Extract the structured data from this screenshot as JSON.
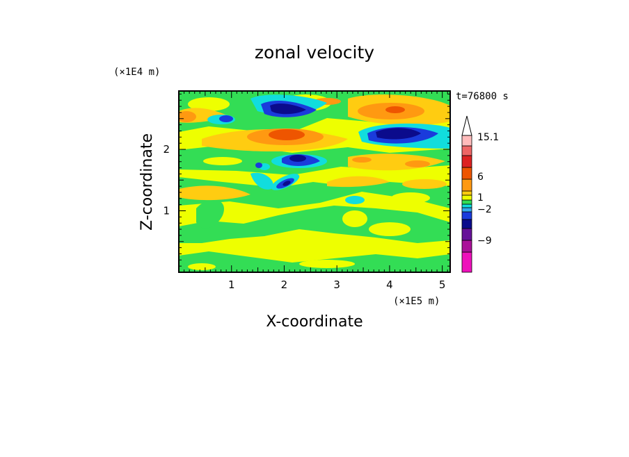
{
  "chart_data": {
    "type": "heatmap",
    "title": "zonal velocity",
    "xlabel": "X-coordinate",
    "ylabel": "Z-coordinate",
    "x_unit": "(×1E5 m)",
    "y_unit": "(×1E4 m)",
    "time_label": "t=76800 s",
    "xlim": [
      0,
      5.15
    ],
    "ylim": [
      0,
      2.95
    ],
    "x_ticks": [
      "1",
      "2",
      "3",
      "4",
      "5"
    ],
    "y_ticks": [
      "1",
      "2"
    ],
    "grid": false,
    "colorbar": {
      "position": "right",
      "labels": [
        "15.1",
        "6",
        "1",
        "−2",
        "−9"
      ],
      "levels": [
        {
          "level": "below -9",
          "color": "#ee11bb"
        },
        {
          "level": "-9",
          "color": "#aa1199"
        },
        {
          "level": "-6",
          "color": "#661199"
        },
        {
          "level": "-4",
          "color": "#0b0b8c"
        },
        {
          "level": "-3",
          "color": "#1a3bdc"
        },
        {
          "level": "-2",
          "color": "#33aaee"
        },
        {
          "level": "-1",
          "color": "#11dddd"
        },
        {
          "level": "0",
          "color": "#33dd55"
        },
        {
          "level": "1",
          "color": "#eeff00"
        },
        {
          "level": "2",
          "color": "#ffcc11"
        },
        {
          "level": "3",
          "color": "#ff9911"
        },
        {
          "level": "6",
          "color": "#ee5500"
        },
        {
          "level": "9",
          "color": "#dd2222"
        },
        {
          "level": "12",
          "color": "#ee6666"
        },
        {
          "level": "15.1",
          "color": "#ffbbbb"
        }
      ],
      "extend_max": true
    },
    "field_features": [
      {
        "x": 1.85,
        "z": 2.53,
        "value": -4,
        "label": "negative jet upper left"
      },
      {
        "x": 4.15,
        "z": 2.28,
        "value": -4,
        "label": "negative jet right"
      },
      {
        "x": 2.15,
        "z": 2.22,
        "value": 3,
        "label": "positive core center"
      },
      {
        "x": 4.4,
        "z": 2.65,
        "value": 3,
        "label": "positive core upper right"
      },
      {
        "x": 2.25,
        "z": 1.9,
        "value": -4,
        "label": "negative eddy center"
      },
      {
        "x": 2.0,
        "z": 1.5,
        "value": -3,
        "label": "negative streak lower"
      },
      {
        "x": 3.35,
        "z": 1.2,
        "value": -1,
        "label": "weak negative patch"
      }
    ]
  }
}
